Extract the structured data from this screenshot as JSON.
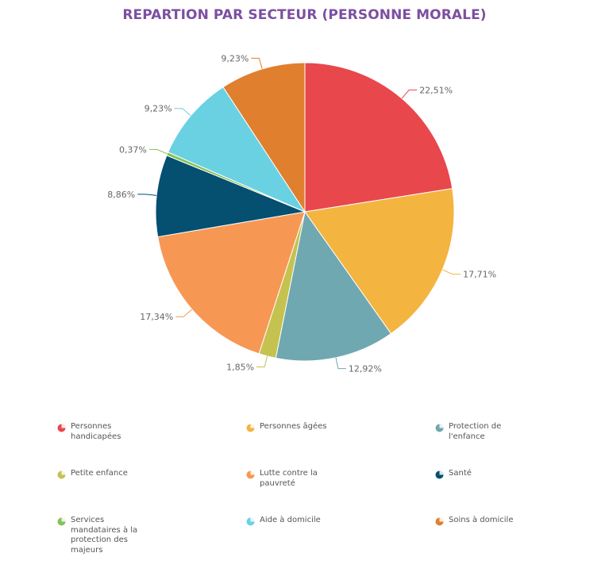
{
  "chart_data": {
    "type": "pie",
    "title": "REPARTION PAR SECTEUR (PERSONNE MORALE)",
    "slices": [
      {
        "name": "Personnes handicapées",
        "value": 22.51,
        "label": "22,51%",
        "color": "#e8474c"
      },
      {
        "name": "Personnes âgées",
        "value": 17.71,
        "label": "17,71%",
        "color": "#f4b440"
      },
      {
        "name": "Protection de l'enfance",
        "value": 12.92,
        "label": "12,92%",
        "color": "#6fa8b0"
      },
      {
        "name": "Petite enfance",
        "value": 1.85,
        "label": "1,85%",
        "color": "#c5c24f"
      },
      {
        "name": "Lutte contre la pauvreté",
        "value": 17.34,
        "label": "17,34%",
        "color": "#f79754"
      },
      {
        "name": "Santé",
        "value": 8.86,
        "label": "8,86%",
        "color": "#054f71"
      },
      {
        "name": "Services mandataires à la protection des majeurs",
        "value": 0.37,
        "label": "0,37%",
        "color": "#84c158"
      },
      {
        "name": "Aide à domicile",
        "value": 9.23,
        "label": "9,23%",
        "color": "#6ad1e3"
      },
      {
        "name": "Soins à domicile",
        "value": 9.23,
        "label": "9,23%",
        "color": "#e07f2e"
      }
    ],
    "legend_position": "bottom"
  }
}
